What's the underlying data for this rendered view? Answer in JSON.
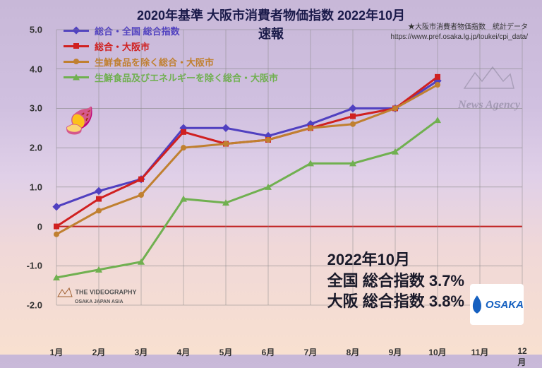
{
  "title": {
    "text": "2020年基準 大阪市消費者物価指数 2022年10月速報",
    "fontsize": 18
  },
  "source": {
    "line1": "★大阪市消費者物価指数　統計データ",
    "line2": "https://www.pref.osaka.lg.jp/toukei/cpi_data/"
  },
  "legend": {
    "items": [
      {
        "label": "総合・全国 総合指数",
        "color": "#5040c0",
        "marker": "diamond"
      },
      {
        "label": "総合・大阪市",
        "color": "#d02020",
        "marker": "square"
      },
      {
        "label": "生鮮食品を除く総合・大阪市",
        "color": "#c08030",
        "marker": "circle"
      },
      {
        "label": "生鮮食品及びエネルギーを除く総合・大阪市",
        "color": "#70b050",
        "marker": "triangle"
      }
    ]
  },
  "chart": {
    "type": "line",
    "ylim": [
      -2.0,
      5.0
    ],
    "ytick_step": 1.0,
    "yticks": [
      "5.0",
      "4.0",
      "3.0",
      "2.0",
      "1.0",
      "0",
      "-1.0",
      "-2.0"
    ],
    "xlabels": [
      "1月",
      "2月",
      "3月",
      "4月",
      "5月",
      "6月",
      "7月",
      "8月",
      "9月",
      "10月",
      "11月",
      "12月"
    ],
    "zero_line_color": "#c02020",
    "grid_color": "#888888",
    "series": [
      {
        "name": "national",
        "color": "#5040c0",
        "marker": "diamond",
        "values": [
          0.5,
          0.9,
          1.2,
          2.5,
          2.5,
          2.3,
          2.6,
          3.0,
          3.0,
          3.7,
          null,
          null
        ]
      },
      {
        "name": "osaka",
        "color": "#d02020",
        "marker": "square",
        "values": [
          0.0,
          0.7,
          1.2,
          2.4,
          2.1,
          2.2,
          2.5,
          2.8,
          3.0,
          3.8,
          null,
          null
        ]
      },
      {
        "name": "osaka_ex_fresh",
        "color": "#c08030",
        "marker": "circle",
        "values": [
          -0.2,
          0.4,
          0.8,
          2.0,
          2.1,
          2.2,
          2.5,
          2.6,
          3.0,
          3.6,
          null,
          null
        ]
      },
      {
        "name": "osaka_ex_fresh_energy",
        "color": "#70b050",
        "marker": "triangle",
        "values": [
          -1.3,
          -1.1,
          -0.9,
          0.7,
          0.6,
          1.0,
          1.6,
          1.6,
          1.9,
          2.7,
          null,
          null
        ]
      }
    ]
  },
  "annotation": {
    "line1": "2022年10月",
    "line2": "全国 総合指数 3.7%",
    "line3": "大阪 総合指数 3.8%",
    "fontsize": 22
  },
  "logos": {
    "osaka": "OSAKA",
    "videography_line1": "THE VIDEOGRAPHY",
    "videography_line2": "OSAKA JAPAN ASIA",
    "news_agency": "News Agency"
  }
}
